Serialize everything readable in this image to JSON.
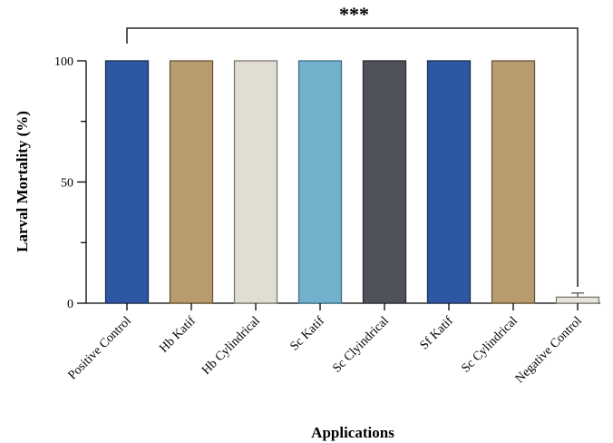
{
  "chart_data": {
    "type": "bar",
    "xlabel": "Applications",
    "ylabel": "Larval Mortality (%)",
    "ylim": [
      0,
      100
    ],
    "yticks": [
      0,
      50,
      100
    ],
    "categories": [
      "Positive Control",
      "Hb Katif",
      "Hb Cylindrical",
      "Sc Katif",
      "Sc Clyindrical",
      "Sf Katif",
      "Sc Cylindrical",
      "Negative Control"
    ],
    "values": [
      100,
      100,
      100,
      100,
      100,
      100,
      100,
      2.5
    ],
    "error": [
      0,
      0,
      0,
      0,
      0,
      0,
      0,
      1.7
    ],
    "bar_colors": [
      "#2d56a3",
      "#b89c70",
      "#e2ddd1",
      "#72b0cb",
      "#4f5359",
      "#2d56a3",
      "#b89c70",
      "#e8e4da"
    ],
    "bar_edge_colors": [
      "#1c2e55",
      "#6a5436",
      "#7a7a72",
      "#3f6f85",
      "#2a2c30",
      "#1c2e55",
      "#6a5436",
      "#7a7a72"
    ],
    "significance": {
      "label": "***",
      "from_category": "Positive Control",
      "to_category": "Negative Control"
    },
    "grid": false,
    "legend": "none"
  }
}
